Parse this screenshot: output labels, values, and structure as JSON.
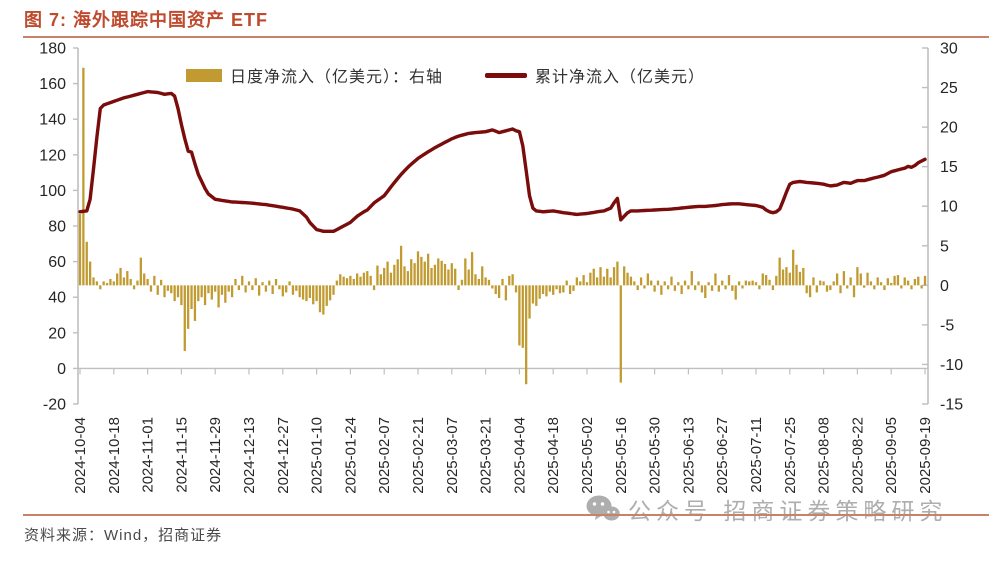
{
  "header": {
    "title": "图 7: 海外跟踪中国资产 ETF"
  },
  "legend": [
    {
      "label": "日度净流入（亿美元）：右轴",
      "swatch": "bar-swatch",
      "color": "#C19B31"
    },
    {
      "label": "累计净流入（亿美元）",
      "swatch": "line-swatch",
      "color": "#7A0C0C"
    }
  ],
  "footer": {
    "source_label": "资料来源：Wind，招商证券"
  },
  "watermark": {
    "icon": "wechat-icon",
    "text": "公众号  招商证券策略研究"
  },
  "colors": {
    "title": "#BF4A2E",
    "accent_rule": "#C8826B",
    "bar": "#C19B31",
    "line": "#7A0C0C",
    "axis_line": "#BFBFBF",
    "tick_text": "#262626"
  },
  "chart_data": {
    "type": "combo",
    "title": "海外跟踪中国资产 ETF",
    "n_points": 251,
    "tick_day_step": 10,
    "left_axis": {
      "min": -20,
      "max": 180,
      "step": 20,
      "side": "left"
    },
    "right_axis": {
      "min": -15,
      "max": 30,
      "step": 5,
      "side": "right"
    },
    "x_tick_labels": [
      "2024-10-04",
      "2024-10-18",
      "2024-11-01",
      "2024-11-15",
      "2024-11-29",
      "2024-12-13",
      "2024-12-27",
      "2025-01-10",
      "2025-01-24",
      "2025-02-07",
      "2025-02-21",
      "2025-03-07",
      "2025-03-21",
      "2025-04-04",
      "2025-04-18",
      "2025-05-02",
      "2025-05-16",
      "2025-05-30",
      "2025-06-13",
      "2025-06-27",
      "2025-07-11",
      "2025-07-25",
      "2025-08-08",
      "2025-08-22",
      "2025-09-05",
      "2025-09-19"
    ],
    "series": [
      {
        "name": "日度净流入（亿美元）：右轴",
        "type": "bar",
        "axis": "right",
        "color": "#C19B31",
        "values": [
          9,
          27.5,
          5.5,
          3,
          1,
          0.5,
          -0.5,
          0.5,
          0.3,
          0.8,
          0.5,
          1.5,
          2.2,
          1,
          1.8,
          0.8,
          -0.5,
          0.6,
          3.5,
          1.5,
          0.8,
          -0.8,
          1.2,
          -1.2,
          0.7,
          -1.5,
          -0.7,
          -1,
          -2,
          -1.5,
          -2.5,
          -8.3,
          -5.5,
          -3,
          -4.5,
          -2,
          -1.5,
          -2.5,
          -1,
          -1.8,
          -0.8,
          -2.8,
          -1.2,
          -2.2,
          -0.8,
          -1.5,
          0.8,
          -0.6,
          1.2,
          -0.9,
          0.5,
          -0.6,
          0.9,
          -1.3,
          0.4,
          -0.8,
          0.6,
          -1.1,
          0.8,
          -0.5,
          -1.4,
          -0.9,
          0.5,
          -1.2,
          -0.7,
          -1.5,
          -1.8,
          -2,
          -1.6,
          -2.4,
          -2,
          -3.4,
          -3.7,
          -2.6,
          -1.9,
          -1.2,
          0.6,
          1.4,
          1.1,
          0.9,
          1.2,
          0.8,
          1.5,
          1.1,
          1.6,
          1.8,
          1.2,
          -0.6,
          2.5,
          1.4,
          2.2,
          3,
          1.6,
          2.6,
          3.3,
          5,
          2.4,
          1.8,
          3.3,
          2.8,
          4.3,
          3.6,
          3,
          4,
          2.2,
          2.6,
          3.4,
          3.1,
          2.7,
          2,
          2.8,
          2.1,
          -0.6,
          0.7,
          3.4,
          2,
          4.2,
          1.4,
          0.8,
          2.4,
          1,
          0.7,
          -0.4,
          -1.1,
          -1.6,
          0.8,
          -1.9,
          1.2,
          1.4,
          -0.9,
          -7.6,
          -7.9,
          -12.5,
          -4.2,
          -2.3,
          -2.6,
          -1.7,
          -1.1,
          -1.4,
          -0.8,
          -1.2,
          -0.5,
          -1,
          -0.9,
          0.6,
          -1.1,
          -0.7,
          1,
          0.5,
          1.3,
          0.4,
          1.6,
          2.1,
          1,
          2.3,
          1.1,
          2.1,
          1,
          2.3,
          3,
          -12.3,
          2.4,
          1.6,
          1.1,
          0.5,
          -0.6,
          1,
          -0.4,
          1.5,
          0.6,
          -0.8,
          0.6,
          -1.2,
          0.5,
          -0.5,
          1.1,
          -0.7,
          0.4,
          -1.1,
          0.6,
          -0.5,
          1.8,
          -0.6,
          0.5,
          -0.9,
          -1.6,
          0.4,
          -0.7,
          1.5,
          -0.8,
          0.6,
          -0.5,
          1.3,
          -0.7,
          -1.8,
          0.5,
          -0.4,
          0.6,
          0.5,
          0.6,
          0.4,
          -0.5,
          1.5,
          1.3,
          0.7,
          -0.6,
          1.2,
          3.5,
          2,
          2.3,
          1.6,
          4.5,
          2.6,
          1.7,
          2.2,
          -1,
          -1.5,
          1,
          -0.9,
          0.6,
          0.5,
          -0.8,
          -0.6,
          0.5,
          1.5,
          -1,
          1.8,
          -0.4,
          1,
          -1.5,
          2.3,
          1.5,
          -0.3,
          1.6,
          0.5,
          -0.5,
          1,
          0.4,
          -0.6,
          0.9,
          0.3,
          1.2,
          1.3,
          -0.4,
          1,
          0.6,
          -0.5,
          0.8,
          1.1,
          -0.4,
          1.2
        ]
      },
      {
        "name": "累计净流入（亿美元）",
        "type": "line",
        "axis": "left",
        "color": "#7A0C0C",
        "anchors": [
          [
            0,
            88
          ],
          [
            2,
            88.5
          ],
          [
            3,
            95
          ],
          [
            4,
            112
          ],
          [
            5,
            130
          ],
          [
            6,
            146
          ],
          [
            7,
            148
          ],
          [
            10,
            150
          ],
          [
            13,
            152
          ],
          [
            15,
            153
          ],
          [
            18,
            154.5
          ],
          [
            20,
            155.5
          ],
          [
            23,
            155
          ],
          [
            25,
            154
          ],
          [
            27,
            154.5
          ],
          [
            28,
            153
          ],
          [
            29,
            146
          ],
          [
            30,
            137
          ],
          [
            31,
            129
          ],
          [
            32,
            122
          ],
          [
            33,
            121.5
          ],
          [
            34,
            115
          ],
          [
            35,
            109
          ],
          [
            36,
            105
          ],
          [
            37,
            101
          ],
          [
            38,
            98
          ],
          [
            40,
            95
          ],
          [
            45,
            93.5
          ],
          [
            50,
            93
          ],
          [
            55,
            92
          ],
          [
            60,
            90.5
          ],
          [
            63,
            89.5
          ],
          [
            65,
            88.5
          ],
          [
            67,
            85
          ],
          [
            68,
            82
          ],
          [
            70,
            78
          ],
          [
            72,
            77
          ],
          [
            75,
            77
          ],
          [
            77,
            79
          ],
          [
            80,
            82
          ],
          [
            82,
            85.5
          ],
          [
            84,
            88
          ],
          [
            85,
            89
          ],
          [
            87,
            93
          ],
          [
            90,
            97
          ],
          [
            92,
            102
          ],
          [
            95,
            109
          ],
          [
            97,
            113
          ],
          [
            100,
            118
          ],
          [
            102,
            120.5
          ],
          [
            105,
            124
          ],
          [
            107,
            126
          ],
          [
            110,
            129
          ],
          [
            112,
            130.5
          ],
          [
            115,
            132
          ],
          [
            117,
            132.5
          ],
          [
            120,
            133
          ],
          [
            122,
            134
          ],
          [
            124,
            132.5
          ],
          [
            126,
            133.5
          ],
          [
            128,
            134.5
          ],
          [
            129,
            133.5
          ],
          [
            130,
            133
          ],
          [
            131,
            125
          ],
          [
            132,
            111
          ],
          [
            133,
            97
          ],
          [
            134,
            90
          ],
          [
            135,
            88.5
          ],
          [
            137,
            88
          ],
          [
            140,
            88.5
          ],
          [
            143,
            87.5
          ],
          [
            145,
            87
          ],
          [
            147,
            86.5
          ],
          [
            150,
            87
          ],
          [
            153,
            88
          ],
          [
            155,
            88.5
          ],
          [
            157,
            90
          ],
          [
            158,
            93
          ],
          [
            159,
            95.5
          ],
          [
            160,
            83.5
          ],
          [
            161,
            85.5
          ],
          [
            162,
            87.5
          ],
          [
            163,
            88.5
          ],
          [
            165,
            88.5
          ],
          [
            170,
            89
          ],
          [
            175,
            89.5
          ],
          [
            180,
            90.5
          ],
          [
            183,
            91
          ],
          [
            185,
            91
          ],
          [
            188,
            91.5
          ],
          [
            190,
            92
          ],
          [
            193,
            92.5
          ],
          [
            195,
            92.5
          ],
          [
            197,
            92
          ],
          [
            200,
            91.5
          ],
          [
            202,
            90.5
          ],
          [
            203,
            89
          ],
          [
            204,
            88
          ],
          [
            205,
            87.5
          ],
          [
            206,
            88
          ],
          [
            207,
            89.5
          ],
          [
            208,
            94
          ],
          [
            209,
            99
          ],
          [
            210,
            103.5
          ],
          [
            211,
            104.5
          ],
          [
            213,
            105
          ],
          [
            215,
            104.5
          ],
          [
            218,
            104
          ],
          [
            220,
            103.5
          ],
          [
            222,
            102.5
          ],
          [
            224,
            103
          ],
          [
            226,
            104.5
          ],
          [
            228,
            104
          ],
          [
            230,
            105.5
          ],
          [
            232,
            105.5
          ],
          [
            234,
            106.5
          ],
          [
            236,
            107.5
          ],
          [
            238,
            108.5
          ],
          [
            240,
            110.5
          ],
          [
            242,
            111.5
          ],
          [
            244,
            112.5
          ],
          [
            245,
            113.5
          ],
          [
            246,
            113
          ],
          [
            247,
            114
          ],
          [
            248,
            115.5
          ],
          [
            249,
            116.5
          ],
          [
            250,
            117.5
          ]
        ]
      }
    ]
  }
}
